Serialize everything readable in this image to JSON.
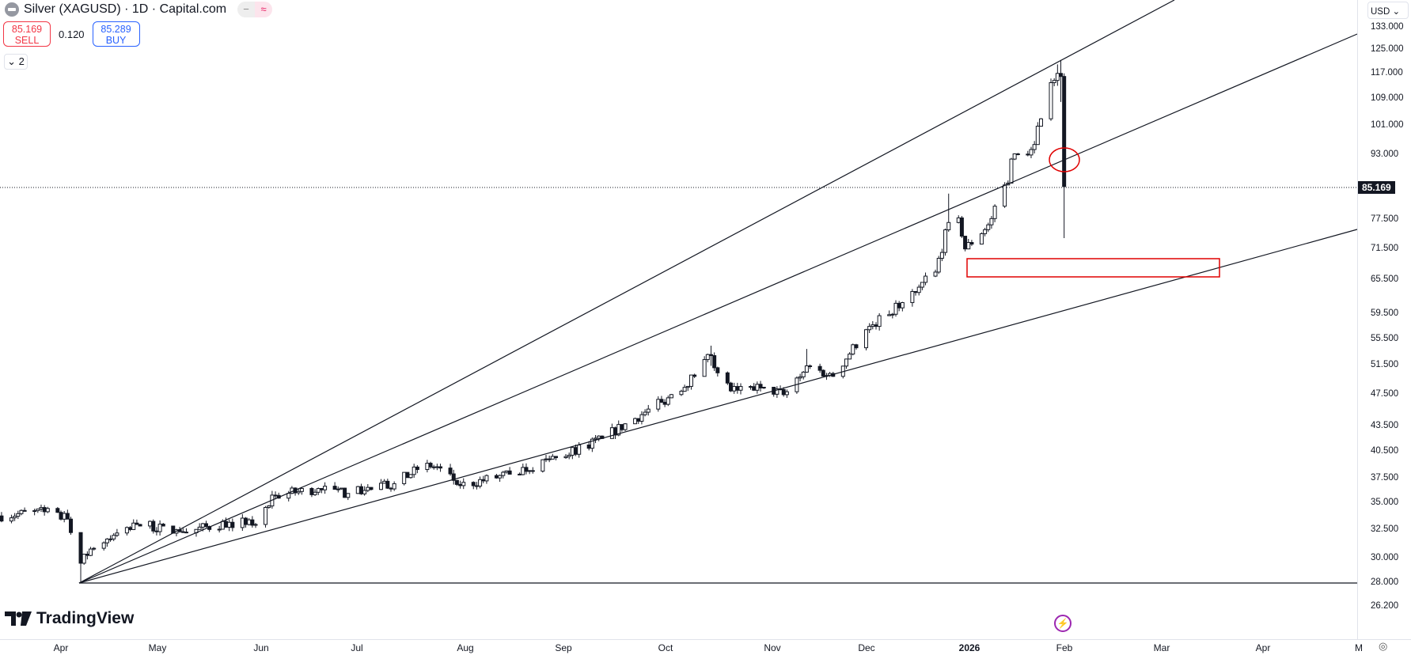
{
  "header": {
    "title": "Silver (XAGUSD) · 1D · Capital.com",
    "pill_a": "−",
    "pill_b": "≈",
    "sell": {
      "price": "85.169",
      "label": "SELL"
    },
    "spread": "0.120",
    "buy": {
      "price": "85.289",
      "label": "BUY"
    },
    "indicators_toggle": "2"
  },
  "price_axis": {
    "currency": "USD",
    "ticks": [
      "133.000",
      "125.000",
      "117.000",
      "109.000",
      "101.000",
      "93.000",
      "77.500",
      "71.500",
      "65.500",
      "59.500",
      "55.500",
      "51.500",
      "47.500",
      "43.500",
      "40.500",
      "37.500",
      "35.000",
      "32.500",
      "30.000",
      "28.000",
      "26.200"
    ],
    "last_price": "85.169"
  },
  "time_axis": {
    "labels": [
      "Apr",
      "May",
      "Jun",
      "Jul",
      "Aug",
      "Sep",
      "Oct",
      "Nov",
      "Dec",
      "2026",
      "Feb",
      "Mar",
      "Apr",
      "M"
    ]
  },
  "logo": "TradingView",
  "colors": {
    "sell": "#f23645",
    "buy": "#2962ff",
    "annotation": "#e00000"
  },
  "chart_data": {
    "type": "candlestick",
    "symbol": "XAGUSD",
    "interval": "1D",
    "scale": "log",
    "anchors": [
      [
        "2025-03-13",
        33.8
      ],
      [
        "2025-03-27",
        34.2
      ],
      [
        "2025-04-03",
        33.5
      ],
      [
        "2025-04-07",
        29.6,
        30.5,
        28.0
      ],
      [
        "2025-04-10",
        30.8
      ],
      [
        "2025-04-24",
        33.0
      ],
      [
        "2025-05-08",
        32.3
      ],
      [
        "2025-05-22",
        33.2
      ],
      [
        "2025-05-30",
        33.0
      ],
      [
        "2025-06-05",
        35.8
      ],
      [
        "2025-06-18",
        36.5
      ],
      [
        "2025-06-27",
        36.0
      ],
      [
        "2025-07-11",
        37.0
      ],
      [
        "2025-07-18",
        38.5
      ],
      [
        "2025-07-24",
        38.8
      ],
      [
        "2025-07-31",
        36.8
      ],
      [
        "2025-08-15",
        38.0
      ],
      [
        "2025-08-29",
        39.8
      ],
      [
        "2025-09-12",
        42.0
      ],
      [
        "2025-09-30",
        46.5
      ],
      [
        "2025-10-10",
        50.0
      ],
      [
        "2025-10-15",
        53.0,
        54.5,
        51.5
      ],
      [
        "2025-10-17",
        50.5
      ],
      [
        "2025-10-21",
        48.0
      ],
      [
        "2025-10-31",
        48.5
      ],
      [
        "2025-11-06",
        47.5
      ],
      [
        "2025-11-13",
        51.5,
        54.0,
        50.5
      ],
      [
        "2025-11-21",
        50.0
      ],
      [
        "2025-12-01",
        57.0
      ],
      [
        "2025-12-12",
        61.5
      ],
      [
        "2025-12-22",
        67.0
      ],
      [
        "2025-12-26",
        77.0,
        83.5,
        75.0
      ],
      [
        "2025-12-29",
        78.0
      ],
      [
        "2025-12-31",
        71.5
      ],
      [
        "2026-01-07",
        76.5
      ],
      [
        "2026-01-13",
        86.0
      ],
      [
        "2026-01-14",
        92.0
      ],
      [
        "2026-01-20",
        94.5
      ],
      [
        "2026-01-23",
        103.0
      ],
      [
        "2026-01-26",
        114.0
      ],
      [
        "2026-01-28",
        117.0,
        120.0,
        113.0
      ],
      [
        "2026-01-29",
        116.0,
        121.5,
        108.0
      ],
      [
        "2026-01-30",
        85.169,
        117.0,
        73.7
      ]
    ],
    "trendlines": "fan from 2025-04-07 low (28.0) plus horizontal at 28.0",
    "annotations": [
      "red ellipse at ~91 on 2026-01-30",
      "red rectangle zone ~66.5–69.5 from 2025-12-31 to 2026-03-20"
    ]
  }
}
